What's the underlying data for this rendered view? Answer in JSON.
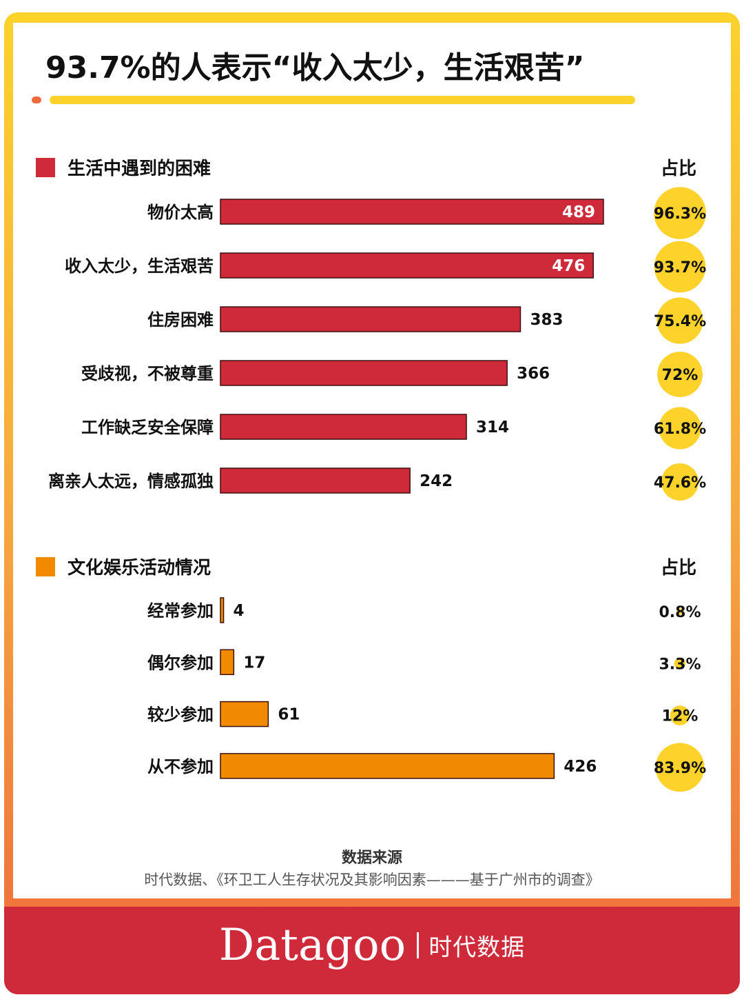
{
  "title": "93.7%的人表示“收入太少，生活艰苦”",
  "colors": {
    "red": "#cf2a3a",
    "orange": "#f28a00",
    "yellow": "#fcd22b"
  },
  "chart_data": [
    {
      "type": "bar",
      "orientation": "horizontal",
      "title": "生活中遇到的困难",
      "ratio_header": "占比",
      "categories": [
        "物价太高",
        "收入太少，生活艰苦",
        "住房困难",
        "受歧视，不被尊重",
        "工作缺乏安全保障",
        "离亲人太远，情感孤独"
      ],
      "values": [
        489,
        476,
        383,
        366,
        314,
        242
      ],
      "value_labels": [
        "489",
        "476",
        "383",
        "366",
        "314",
        "242"
      ],
      "ratios": [
        96.3,
        93.7,
        75.4,
        72,
        61.8,
        47.6
      ],
      "ratio_labels": [
        "96.3%",
        "93.7%",
        "75.4%",
        "72%",
        "61.8%",
        "47.6%"
      ],
      "color": "#cf2a3a"
    },
    {
      "type": "bar",
      "orientation": "horizontal",
      "title": "文化娱乐活动情况",
      "ratio_header": "占比",
      "categories": [
        "经常参加",
        "偶尔参加",
        "较少参加",
        "从不参加"
      ],
      "values": [
        4,
        17,
        61,
        426
      ],
      "value_labels": [
        "4",
        "17",
        "61",
        "426"
      ],
      "ratios": [
        0.8,
        3.3,
        12,
        83.9
      ],
      "ratio_labels": [
        "0.8%",
        "3.3%",
        "12%",
        "83.9%"
      ],
      "color": "#f28a00"
    }
  ],
  "source": {
    "heading": "数据来源",
    "text": "时代数据、《环卫工人生存状况及其影响因素———基于广州市的调查》"
  },
  "brand": {
    "logo": "Datagoo",
    "name": "时代数据"
  }
}
